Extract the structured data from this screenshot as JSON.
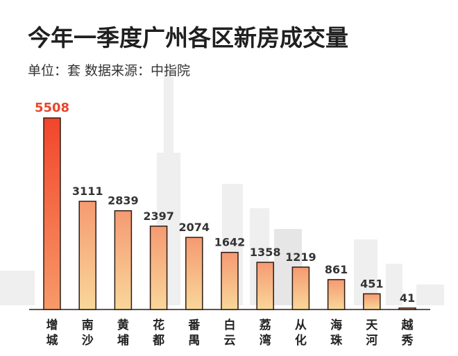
{
  "chart_data": {
    "type": "bar",
    "title": "今年一季度广州各区新房成交量",
    "subtitle": "单位：套    数据来源：中指院",
    "categories": [
      "增城",
      "南沙",
      "黄埔",
      "花都",
      "番禺",
      "白云",
      "荔湾",
      "从化",
      "海珠",
      "天河",
      "越秀"
    ],
    "values": [
      5508,
      3111,
      2839,
      2397,
      2074,
      1642,
      1358,
      1219,
      861,
      451,
      41
    ],
    "ylim": [
      0,
      5508
    ],
    "xlabel": "",
    "ylabel": "",
    "grid": false,
    "legend": "none",
    "colors": {
      "bar_top_max": "#f2452b",
      "bar_bottom_max": "#f79a6a",
      "bar_top": "#f59a72",
      "bar_bottom": "#f9d79a",
      "bar_stroke": "#2b1a12",
      "highlight_label": "#e8452c"
    }
  }
}
